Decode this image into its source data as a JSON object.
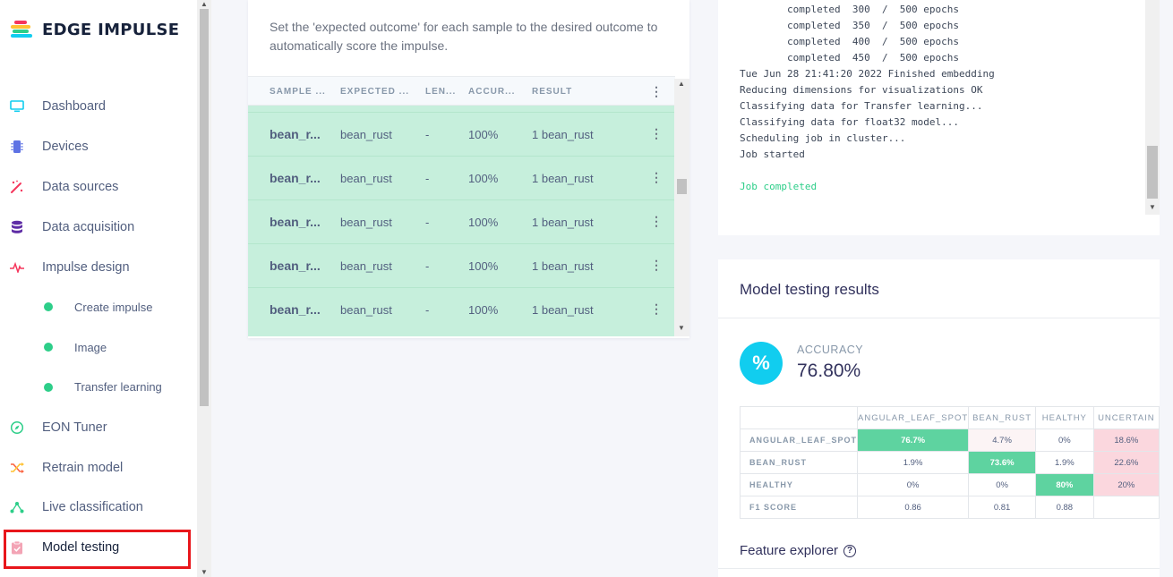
{
  "brand": {
    "name": "EDGE IMPULSE"
  },
  "nav": {
    "items": [
      {
        "label": "Dashboard",
        "icon": "monitor-icon",
        "color": "#11cdef"
      },
      {
        "label": "Devices",
        "icon": "chip-icon",
        "color": "#5e72e4"
      },
      {
        "label": "Data sources",
        "icon": "wand-icon",
        "color": "#f5365c"
      },
      {
        "label": "Data acquisition",
        "icon": "database-icon",
        "color": "#5e2ca5"
      },
      {
        "label": "Impulse design",
        "icon": "pulse-icon",
        "color": "#f5365c"
      },
      {
        "label": "Create impulse",
        "sub": true
      },
      {
        "label": "Image",
        "sub": true
      },
      {
        "label": "Transfer learning",
        "sub": true
      },
      {
        "label": "EON Tuner",
        "icon": "compass-icon",
        "color": "#2dce89"
      },
      {
        "label": "Retrain model",
        "icon": "shuffle-icon",
        "color": "#fb6340"
      },
      {
        "label": "Live classification",
        "icon": "network-icon",
        "color": "#2dce89"
      },
      {
        "label": "Model testing",
        "icon": "clipboard-check-icon",
        "color": "#f3a4b5",
        "active": true
      }
    ]
  },
  "samples": {
    "description": "Set the 'expected outcome' for each sample to the desired outcome to automatically score the impulse.",
    "headers": [
      "SAMPLE ...",
      "EXPECTED ...",
      "LEN...",
      "ACCUR...",
      "RESULT"
    ],
    "rows": [
      {
        "name": "bean_r...",
        "expected": "bean_rust",
        "length": "-",
        "accuracy": "100%",
        "result": "1 bean_rust"
      },
      {
        "name": "bean_r...",
        "expected": "bean_rust",
        "length": "-",
        "accuracy": "100%",
        "result": "1 bean_rust"
      },
      {
        "name": "bean_r...",
        "expected": "bean_rust",
        "length": "-",
        "accuracy": "100%",
        "result": "1 bean_rust"
      },
      {
        "name": "bean_r...",
        "expected": "bean_rust",
        "length": "-",
        "accuracy": "100%",
        "result": "1 bean_rust"
      },
      {
        "name": "bean_r...",
        "expected": "bean_rust",
        "length": "-",
        "accuracy": "100%",
        "result": "1 bean_rust"
      }
    ]
  },
  "log": {
    "lines": [
      "        completed  300  /  500 epochs",
      "        completed  350  /  500 epochs",
      "        completed  400  /  500 epochs",
      "        completed  450  /  500 epochs",
      "Tue Jun 28 21:41:20 2022 Finished embedding",
      "Reducing dimensions for visualizations OK",
      "Classifying data for Transfer learning...",
      "Classifying data for float32 model...",
      "Scheduling job in cluster...",
      "Job started",
      "",
      "Job completed"
    ]
  },
  "results": {
    "title": "Model testing results",
    "accuracy_label": "ACCURACY",
    "accuracy_value": "76.80%",
    "accuracy_icon": "%",
    "matrix": {
      "columns": [
        "ANGULAR_LEAF_SPOT",
        "BEAN_RUST",
        "HEALTHY",
        "UNCERTAIN"
      ],
      "rows": [
        {
          "label": "ANGULAR_LEAF_SPOT",
          "cells": [
            "76.7%",
            "4.7%",
            "0%",
            "18.6%"
          ]
        },
        {
          "label": "BEAN_RUST",
          "cells": [
            "1.9%",
            "73.6%",
            "1.9%",
            "22.6%"
          ]
        },
        {
          "label": "HEALTHY",
          "cells": [
            "0%",
            "0%",
            "80%",
            "20%"
          ]
        },
        {
          "label": "F1 SCORE",
          "cells": [
            "0.86",
            "0.81",
            "0.88",
            ""
          ]
        }
      ]
    },
    "feature_explorer": "Feature explorer",
    "help_icon": "?"
  }
}
